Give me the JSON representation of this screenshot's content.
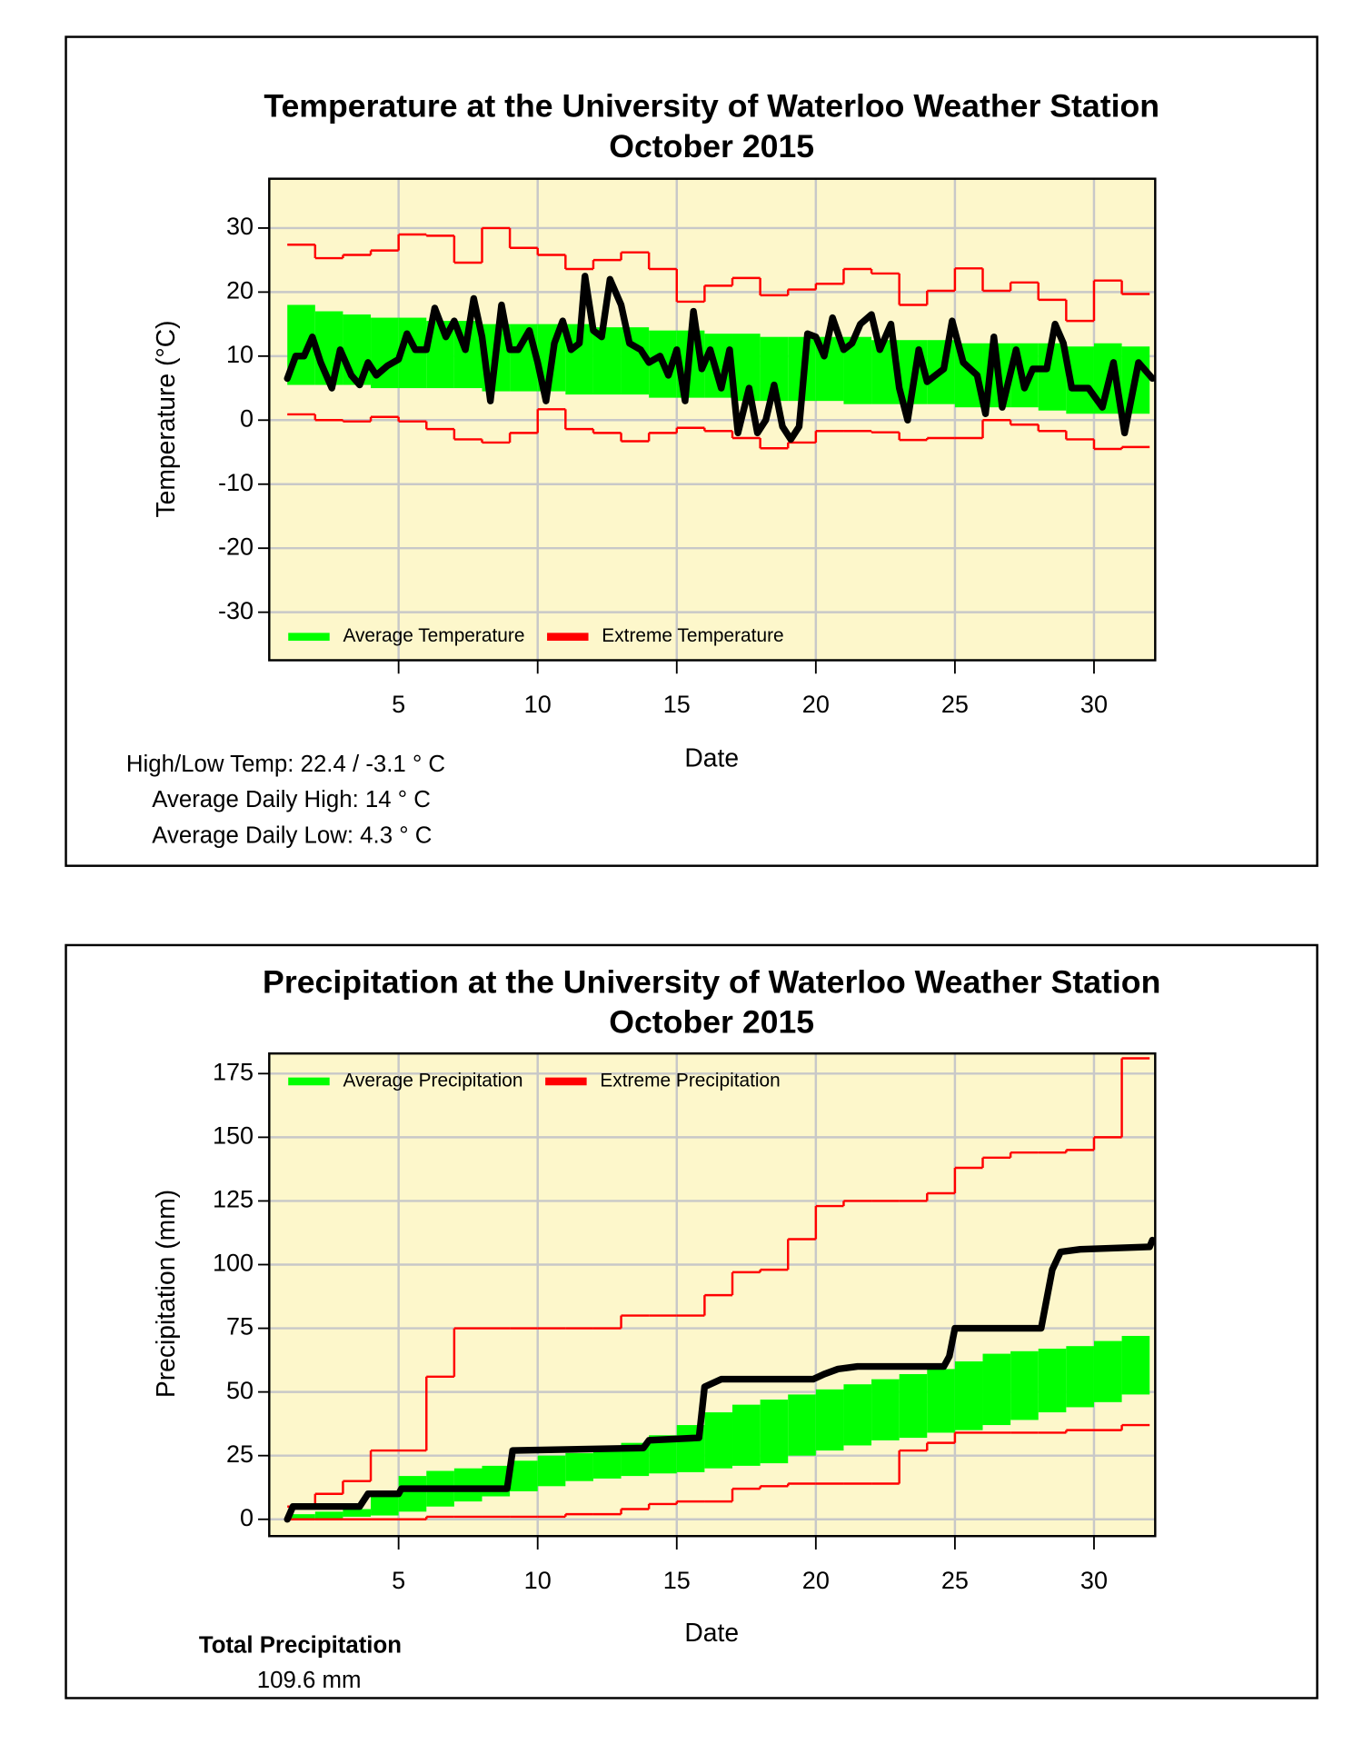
{
  "chart_data": [
    {
      "type": "line",
      "title": "Temperature at the University of Waterloo Weather Station",
      "subtitle": "October 2015",
      "xlabel": "Date",
      "ylabel": "Temperature (°C)",
      "xlim": [
        0.35,
        32.2
      ],
      "xticks": [
        5,
        10,
        15,
        20,
        25,
        30
      ],
      "ylim": [
        -37.5,
        37.7
      ],
      "yticks": [
        -30,
        -20,
        -10,
        0,
        10,
        20,
        30
      ],
      "grid": true,
      "legend": "lower left",
      "background": "#fdf7cb",
      "x": [
        1,
        2,
        3,
        4,
        5,
        6,
        7,
        8,
        9,
        10,
        11,
        12,
        13,
        14,
        15,
        16,
        17,
        18,
        19,
        20,
        21,
        22,
        23,
        24,
        25,
        26,
        27,
        28,
        29,
        30,
        31
      ],
      "series": [
        {
          "name": "Average Temperature",
          "color": "#00ff00",
          "style": "band",
          "high": [
            18,
            17,
            16.5,
            16,
            16,
            15.5,
            15.5,
            15,
            15,
            15,
            15,
            14.5,
            14.5,
            14,
            14,
            13.5,
            13.5,
            13,
            13,
            13,
            13,
            12.5,
            12.5,
            12.5,
            12,
            12,
            12,
            12,
            11.5,
            12,
            11.5
          ],
          "low": [
            5.5,
            5.5,
            5.5,
            5,
            5,
            5,
            5,
            4.5,
            4.5,
            4.5,
            4,
            4,
            4,
            3.5,
            3.5,
            3.5,
            3,
            3,
            3,
            3,
            2.5,
            2.5,
            2.5,
            2.5,
            2,
            2,
            2,
            1.5,
            1,
            1,
            1
          ]
        },
        {
          "name": "Extreme Temperature",
          "color": "#ff0000",
          "style": "steps",
          "high": [
            27.4,
            25.3,
            25.8,
            26.5,
            29,
            28.8,
            24.6,
            30,
            26.9,
            25.8,
            23.6,
            25,
            26.2,
            23.6,
            18.5,
            21,
            22.2,
            19.5,
            20.4,
            21.3,
            23.6,
            22.9,
            18,
            20.2,
            23.7,
            20.2,
            21.5,
            18.8,
            15.5,
            21.8,
            19.7
          ],
          "low": [
            0.9,
            0,
            -0.2,
            0.5,
            -0.2,
            -1.4,
            -3,
            -3.5,
            -2,
            1.7,
            -1.4,
            -2,
            -3.3,
            -2,
            -1.2,
            -1.7,
            -2.8,
            -4.4,
            -3.5,
            -1.7,
            -1.7,
            -1.9,
            -3.1,
            -2.8,
            -2.8,
            0,
            -0.7,
            -1.7,
            -3,
            -4.5,
            -4.2
          ]
        },
        {
          "color": "#000000",
          "style": "line",
          "x": [
            1.0,
            1.3,
            1.6,
            1.9,
            2.2,
            2.6,
            2.9,
            3.3,
            3.6,
            3.9,
            4.2,
            4.6,
            5.0,
            5.3,
            5.6,
            6.0,
            6.3,
            6.7,
            7.0,
            7.4,
            7.7,
            8.0,
            8.3,
            8.7,
            9.0,
            9.3,
            9.7,
            10.0,
            10.3,
            10.6,
            10.9,
            11.2,
            11.5,
            11.7,
            12.0,
            12.3,
            12.6,
            13.0,
            13.3,
            13.7,
            14.0,
            14.4,
            14.7,
            15.0,
            15.3,
            15.6,
            15.9,
            16.2,
            16.6,
            16.9,
            17.2,
            17.6,
            17.9,
            18.2,
            18.5,
            18.8,
            19.1,
            19.4,
            19.7,
            20.0,
            20.3,
            20.6,
            21.0,
            21.3,
            21.6,
            22.0,
            22.3,
            22.7,
            23.0,
            23.3,
            23.7,
            24.0,
            24.3,
            24.6,
            24.9,
            25.3,
            25.8,
            26.1,
            26.4,
            26.7,
            27.2,
            27.5,
            27.8,
            28.3,
            28.6,
            28.9,
            29.2,
            29.8,
            30.3,
            30.7,
            31.1,
            31.6,
            32.1
          ],
          "values": [
            6.5,
            10,
            10,
            13,
            9,
            5,
            11,
            7,
            5.5,
            9,
            7,
            8.5,
            9.5,
            13.5,
            11,
            11,
            17.5,
            13,
            15.5,
            11,
            19,
            13,
            3,
            18,
            11,
            11,
            14,
            9,
            3,
            12,
            15.5,
            11,
            12,
            22.5,
            14,
            13,
            22,
            18,
            12,
            11,
            9,
            10,
            7,
            11,
            3,
            17,
            8,
            11,
            5,
            11,
            -2,
            5,
            -2,
            0,
            5.5,
            -1,
            -3,
            -1,
            13.5,
            13,
            10,
            16,
            11,
            12,
            15,
            16.5,
            11,
            15,
            5,
            0,
            11,
            6,
            7,
            8,
            15.5,
            9,
            7,
            1,
            13,
            2,
            11,
            5,
            8,
            8,
            15,
            12,
            5,
            5,
            2,
            9,
            -2,
            9,
            6.5
          ]
        }
      ],
      "annotations": [
        "High/Low Temp:  22.4 / -3.1 ° C",
        "Average Daily High:  14 ° C",
        "Average Daily Low:  4.3 ° C"
      ]
    },
    {
      "type": "line",
      "title": "Precipitation at the University of Waterloo Weather Station",
      "subtitle": "October 2015",
      "xlabel": "Date",
      "ylabel": "Precipitation (mm)",
      "xlim": [
        0.35,
        32.2
      ],
      "xticks": [
        5,
        10,
        15,
        20,
        25,
        30
      ],
      "ylim": [
        -6.6,
        182.9
      ],
      "yticks": [
        0,
        25,
        50,
        75,
        100,
        125,
        150,
        175
      ],
      "grid": true,
      "legend": "upper left",
      "background": "#fdf7cb",
      "x": [
        1,
        2,
        3,
        4,
        5,
        6,
        7,
        8,
        9,
        10,
        11,
        12,
        13,
        14,
        15,
        16,
        17,
        18,
        19,
        20,
        21,
        22,
        23,
        24,
        25,
        26,
        27,
        28,
        29,
        30,
        31
      ],
      "series": [
        {
          "name": "Average Precipitation",
          "color": "#00ff00",
          "style": "band",
          "high": [
            2,
            3,
            4,
            9,
            17,
            19,
            20,
            21,
            23,
            25,
            26,
            27,
            30,
            33,
            37,
            42,
            45,
            47,
            49,
            51,
            53,
            55,
            57,
            59,
            62,
            65,
            66,
            67,
            68,
            70,
            72
          ],
          "low": [
            0,
            0,
            1,
            1.5,
            3,
            5,
            7,
            9,
            11,
            13,
            15,
            16,
            17,
            18,
            18.5,
            20,
            21,
            22,
            25,
            27,
            29,
            31,
            32,
            34,
            35,
            37,
            39,
            42,
            44,
            46,
            49
          ]
        },
        {
          "name": "Extreme Precipitation",
          "color": "#ff0000",
          "style": "steps",
          "high": [
            5,
            10,
            15,
            27,
            27,
            56,
            75,
            75,
            75,
            75,
            75,
            75,
            80,
            80,
            80,
            88,
            97,
            98,
            110,
            123,
            125,
            125,
            125,
            128,
            138,
            142,
            144,
            144,
            145,
            150,
            181
          ],
          "low": [
            0,
            0,
            0,
            0,
            0,
            1,
            1,
            1,
            1,
            1,
            2,
            2,
            4,
            6,
            7,
            7,
            12,
            13,
            14,
            14,
            14,
            14,
            27,
            30,
            34,
            34,
            34,
            34,
            35,
            35,
            37
          ]
        },
        {
          "color": "#000000",
          "style": "line",
          "x": [
            1.0,
            1.2,
            3.6,
            3.9,
            5.0,
            5.1,
            8.9,
            9.1,
            13.8,
            14.0,
            15.8,
            16.0,
            16.6,
            19.9,
            20.3,
            20.8,
            21.5,
            24.6,
            24.8,
            25.0,
            28.1,
            28.5,
            28.8,
            29.5,
            32.0,
            32.1
          ],
          "values": [
            0,
            5,
            5,
            10,
            10,
            12,
            12,
            27,
            28,
            31,
            32,
            52,
            55,
            55,
            57,
            59,
            60,
            60,
            64,
            75,
            75,
            98,
            105,
            106,
            107,
            109.6
          ]
        }
      ],
      "annotations": [
        "Total Precipitation",
        "109.6 mm"
      ]
    }
  ]
}
